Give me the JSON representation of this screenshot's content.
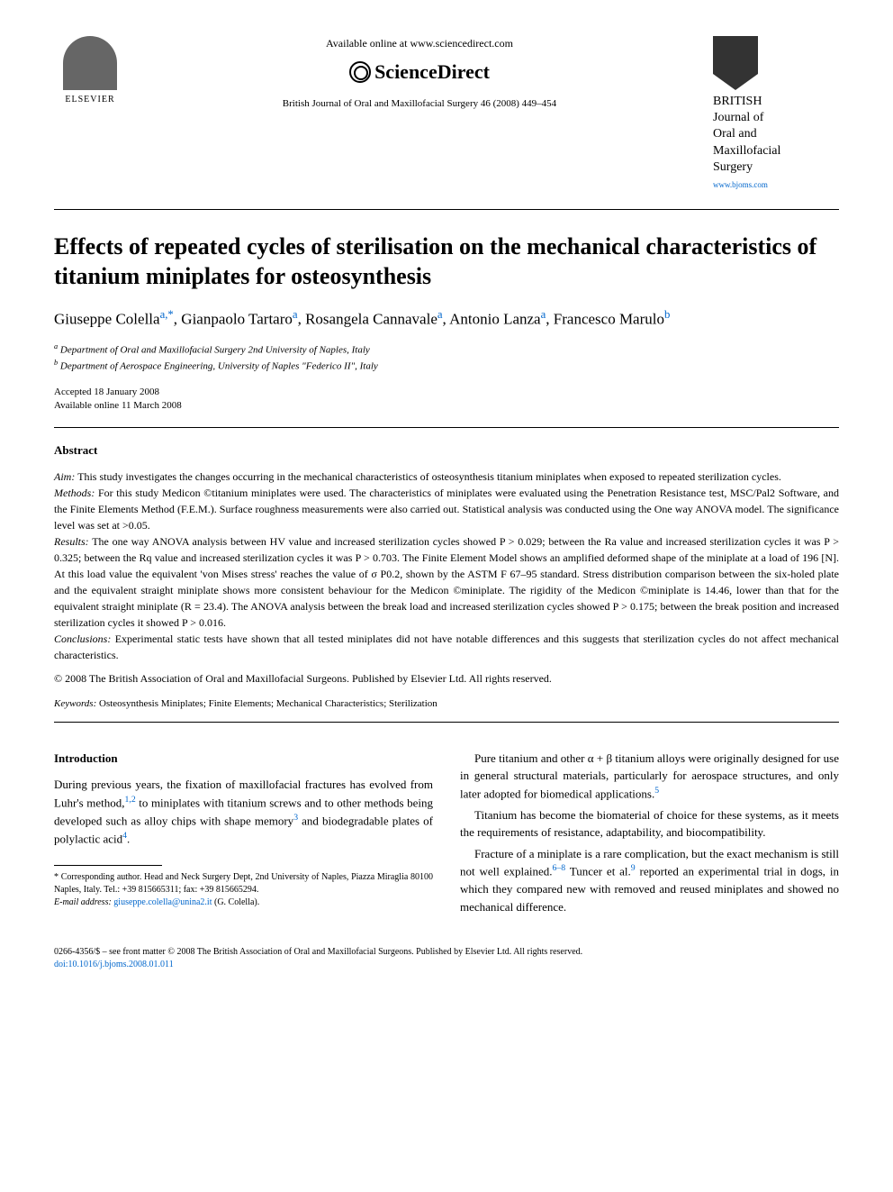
{
  "header": {
    "publisher": "ELSEVIER",
    "available_online": "Available online at www.sciencedirect.com",
    "sciencedirect": "ScienceDirect",
    "journal_ref": "British Journal of Oral and Maxillofacial Surgery 46 (2008) 449–454",
    "journal_name_line1": "BRITISH",
    "journal_name_line2": "Journal of",
    "journal_name_line3": "Oral and",
    "journal_name_line4": "Maxillofacial",
    "journal_name_line5": "Surgery",
    "journal_url": "www.bjoms.com"
  },
  "title": "Effects of repeated cycles of sterilisation on the mechanical characteristics of titanium miniplates for osteosynthesis",
  "authors": {
    "line1": "Giuseppe Colella",
    "sup1": "a,*",
    "name2": ", Gianpaolo Tartaro",
    "sup2": "a",
    "name3": ", Rosangela Cannavale",
    "sup3": "a",
    "name4": ", Antonio Lanza",
    "sup4": "a",
    "name5": ", Francesco Marulo",
    "sup5": "b"
  },
  "affiliations": {
    "a": "Department of Oral and Maxillofacial Surgery 2nd University of Naples, Italy",
    "b": "Department of Aerospace Engineering, University of Naples \"Federico II\", Italy"
  },
  "dates": {
    "accepted": "Accepted 18 January 2008",
    "online": "Available online 11 March 2008"
  },
  "abstract": {
    "heading": "Abstract",
    "aim_label": "Aim:",
    "aim": " This study investigates the changes occurring in the mechanical characteristics of osteosynthesis titanium miniplates when exposed to repeated sterilization cycles.",
    "methods_label": "Methods:",
    "methods": " For this study Medicon ©titanium miniplates were used. The characteristics of miniplates were evaluated using the Penetration Resistance test, MSC/Pal2 Software, and the Finite Elements Method (F.E.M.). Surface roughness measurements were also carried out. Statistical analysis was conducted using the One way ANOVA model. The significance level was set at >0.05.",
    "results_label": "Results:",
    "results": " The one way ANOVA analysis between HV value and increased sterilization cycles showed P > 0.029; between the Ra value and increased sterilization cycles it was P > 0.325; between the Rq value and increased sterilization cycles it was P > 0.703. The Finite Element Model shows an amplified deformed shape of the miniplate at a load of 196 [N]. At this load value the equivalent 'von Mises stress' reaches the value of σ P0.2, shown by the ASTM F 67–95 standard. Stress distribution comparison between the six-holed plate and the equivalent straight miniplate shows more consistent behaviour for the Medicon ©miniplate. The rigidity of the Medicon ©miniplate is 14.46, lower than that for the equivalent straight miniplate (R = 23.4). The ANOVA analysis between the break load and increased sterilization cycles showed P > 0.175; between the break position and increased sterilization cycles it showed P > 0.016.",
    "conclusions_label": "Conclusions:",
    "conclusions": " Experimental static tests have shown that all tested miniplates did not have notable differences and this suggests that sterilization cycles do not affect mechanical characteristics.",
    "copyright": "© 2008 The British Association of Oral and Maxillofacial Surgeons. Published by Elsevier Ltd. All rights reserved."
  },
  "keywords": {
    "label": "Keywords:",
    "text": " Osteosynthesis Miniplates; Finite Elements; Mechanical Characteristics; Sterilization"
  },
  "introduction": {
    "heading": "Introduction",
    "para1_part1": "During previous years, the fixation of maxillofacial fractures has evolved from Luhr's method,",
    "para1_sup1": "1,2",
    "para1_part2": " to miniplates with titanium screws and to other methods being developed such as alloy chips with shape memory",
    "para1_sup2": "3",
    "para1_part3": " and biodegradable plates of polylactic acid",
    "para1_sup3": "4",
    "para1_part4": ".",
    "para2_part1": "Pure titanium and other α + β titanium alloys were originally designed for use in general structural materials, particularly for aerospace structures, and only later adopted for biomedical applications.",
    "para2_sup1": "5",
    "para3": "Titanium has become the biomaterial of choice for these systems, as it meets the requirements of resistance, adaptability, and biocompatibility.",
    "para4_part1": "Fracture of a miniplate is a rare complication, but the exact mechanism is still not well explained.",
    "para4_sup1": "6–8",
    "para4_part2": " Tuncer et al.",
    "para4_sup2": "9",
    "para4_part3": " reported an experimental trial in dogs, in which they compared new with removed and reused miniplates and showed no mechanical difference."
  },
  "footnotes": {
    "corresponding": "* Corresponding author. Head and Neck Surgery Dept, 2nd University of Naples, Piazza Miraglia 80100 Naples, Italy. Tel.: +39 815665311; fax: +39 815665294.",
    "email_label": "E-mail address:",
    "email": " giuseppe.colella@unina2.it",
    "email_suffix": " (G. Colella)."
  },
  "bottom": {
    "issn": "0266-4356/$ – see front matter © 2008 The British Association of Oral and Maxillofacial Surgeons. Published by Elsevier Ltd. All rights reserved.",
    "doi": "doi:10.1016/j.bjoms.2008.01.011"
  }
}
